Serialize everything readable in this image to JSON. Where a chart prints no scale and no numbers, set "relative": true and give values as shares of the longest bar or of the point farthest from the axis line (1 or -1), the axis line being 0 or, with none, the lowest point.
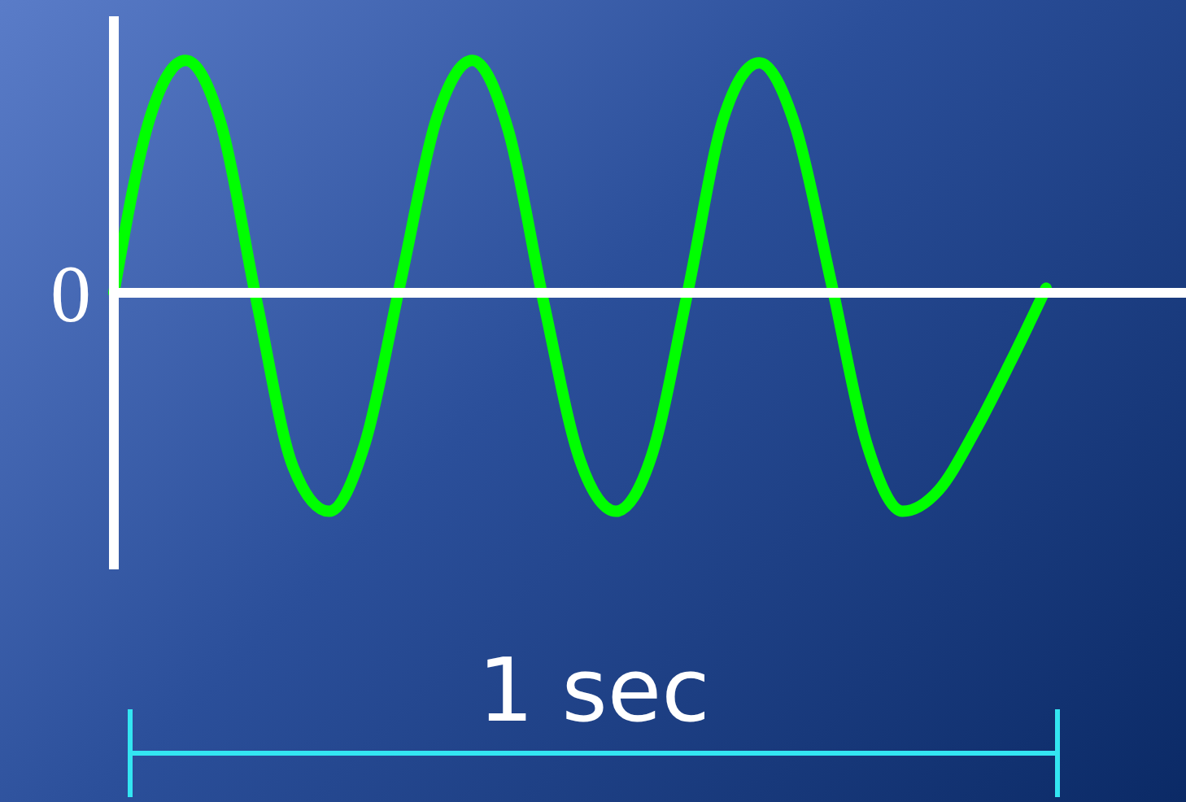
{
  "chart_data": {
    "type": "line",
    "relative": true,
    "categories": [
      null,
      null,
      null,
      null,
      null,
      null,
      null,
      null,
      null,
      null,
      null,
      null,
      null,
      null,
      null,
      null,
      null,
      null,
      null,
      null,
      null,
      null,
      null,
      null,
      null,
      null,
      null
    ],
    "series": [
      {
        "color": "#00ff00",
        "values": [
          0,
          0.75,
          1,
          0.72,
          -0.05,
          -0.75,
          -0.94,
          -0.65,
          0.05,
          0.75,
          1,
          0.7,
          -0.05,
          -0.72,
          -0.94,
          -0.7,
          0,
          0.75,
          0.99,
          0.72,
          0.05,
          -0.65,
          -0.94,
          -0.85,
          -0.6,
          -0.3,
          0.02
        ]
      }
    ],
    "annotations": [
      "0",
      "1 sec"
    ]
  }
}
